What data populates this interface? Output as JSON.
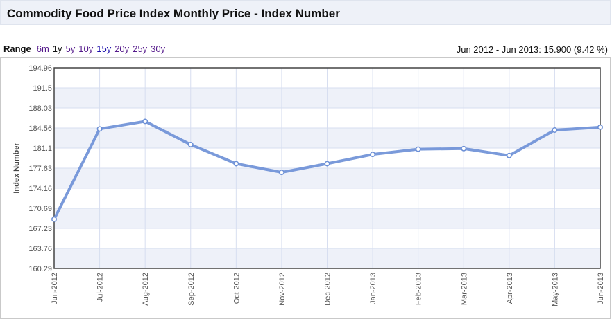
{
  "header": {
    "title": "Commodity Food Price Index Monthly Price - Index Number"
  },
  "range": {
    "label": "Range",
    "options": [
      {
        "label": "6m",
        "state": "visited"
      },
      {
        "label": "1y",
        "state": "active"
      },
      {
        "label": "5y",
        "state": "visited"
      },
      {
        "label": "10y",
        "state": "visited"
      },
      {
        "label": "15y",
        "state": "link"
      },
      {
        "label": "20y",
        "state": "visited"
      },
      {
        "label": "25y",
        "state": "visited"
      },
      {
        "label": "30y",
        "state": "visited"
      }
    ]
  },
  "summary": "Jun 2012 - Jun 2013: 15.900 (9.42 %)",
  "colors": {
    "line": "#6b8fd6",
    "grid_band": "#eef1f9",
    "grid_line": "#d7def0",
    "plot_border": "#444444"
  },
  "chart_data": {
    "type": "line",
    "title": "",
    "xlabel": "",
    "ylabel": "Index Number",
    "ylim": [
      160.29,
      194.96
    ],
    "yticks": [
      "160.29",
      "163.76",
      "167.23",
      "170.69",
      "174.16",
      "177.63",
      "181.1",
      "184.56",
      "188.03",
      "191.5",
      "194.96"
    ],
    "categories": [
      "Jun-2012",
      "Jul-2012",
      "Aug-2012",
      "Sep-2012",
      "Oct-2012",
      "Nov-2012",
      "Dec-2012",
      "Jan-2013",
      "Feb-2013",
      "Mar-2013",
      "Apr-2013",
      "May-2013",
      "Jun-2013"
    ],
    "values": [
      168.8,
      184.4,
      185.7,
      181.7,
      178.4,
      176.9,
      178.4,
      180.0,
      180.9,
      181.0,
      179.8,
      184.2,
      184.7
    ],
    "grid": true
  }
}
